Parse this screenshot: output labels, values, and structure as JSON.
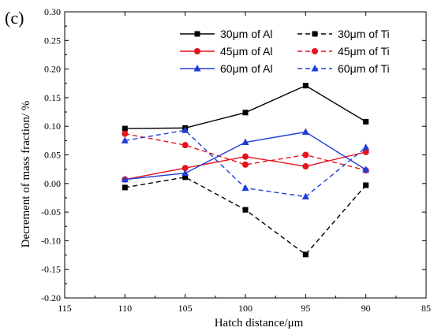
{
  "chart_data": {
    "type": "line",
    "panel_label": "(c)",
    "xlabel": "Hatch distance/μm",
    "ylabel": "Decrement of mass fraction/ %",
    "xlim": [
      115,
      85
    ],
    "ylim": [
      -0.2,
      0.3
    ],
    "x_reversed": true,
    "x_ticks": [
      "115",
      "110",
      "105",
      "100",
      "95",
      "90",
      "85"
    ],
    "y_ticks": [
      "-0.20",
      "-0.15",
      "-0.10",
      "-0.05",
      "0.00",
      "0.05",
      "0.10",
      "0.15",
      "0.20",
      "0.25",
      "0.30"
    ],
    "grid": false,
    "legend_position": "top-right",
    "x": [
      110,
      105,
      100,
      95,
      90
    ],
    "series": [
      {
        "name": "30μm of Al",
        "values": [
          0.096,
          0.097,
          0.124,
          0.171,
          0.108
        ],
        "color": "#000000",
        "marker": "square",
        "dash": "solid"
      },
      {
        "name": "30μm of Ti",
        "values": [
          -0.007,
          0.011,
          -0.046,
          -0.124,
          -0.003
        ],
        "color": "#000000",
        "marker": "square",
        "dash": "dashed"
      },
      {
        "name": "45μm of Al",
        "values": [
          0.007,
          0.027,
          0.047,
          0.03,
          0.055
        ],
        "color": "#e8111e",
        "marker": "circle",
        "dash": "solid"
      },
      {
        "name": "45μm of Ti",
        "values": [
          0.087,
          0.067,
          0.033,
          0.05,
          0.023
        ],
        "color": "#e8111e",
        "marker": "circle",
        "dash": "dashed"
      },
      {
        "name": "60μm of Al",
        "values": [
          0.007,
          0.018,
          0.072,
          0.09,
          0.024
        ],
        "color": "#1f3ed8",
        "marker": "triangle",
        "dash": "solid"
      },
      {
        "name": "60μm of Ti",
        "values": [
          0.075,
          0.093,
          -0.008,
          -0.023,
          0.063
        ],
        "color": "#1f3ed8",
        "marker": "triangle",
        "dash": "dashed"
      }
    ]
  }
}
